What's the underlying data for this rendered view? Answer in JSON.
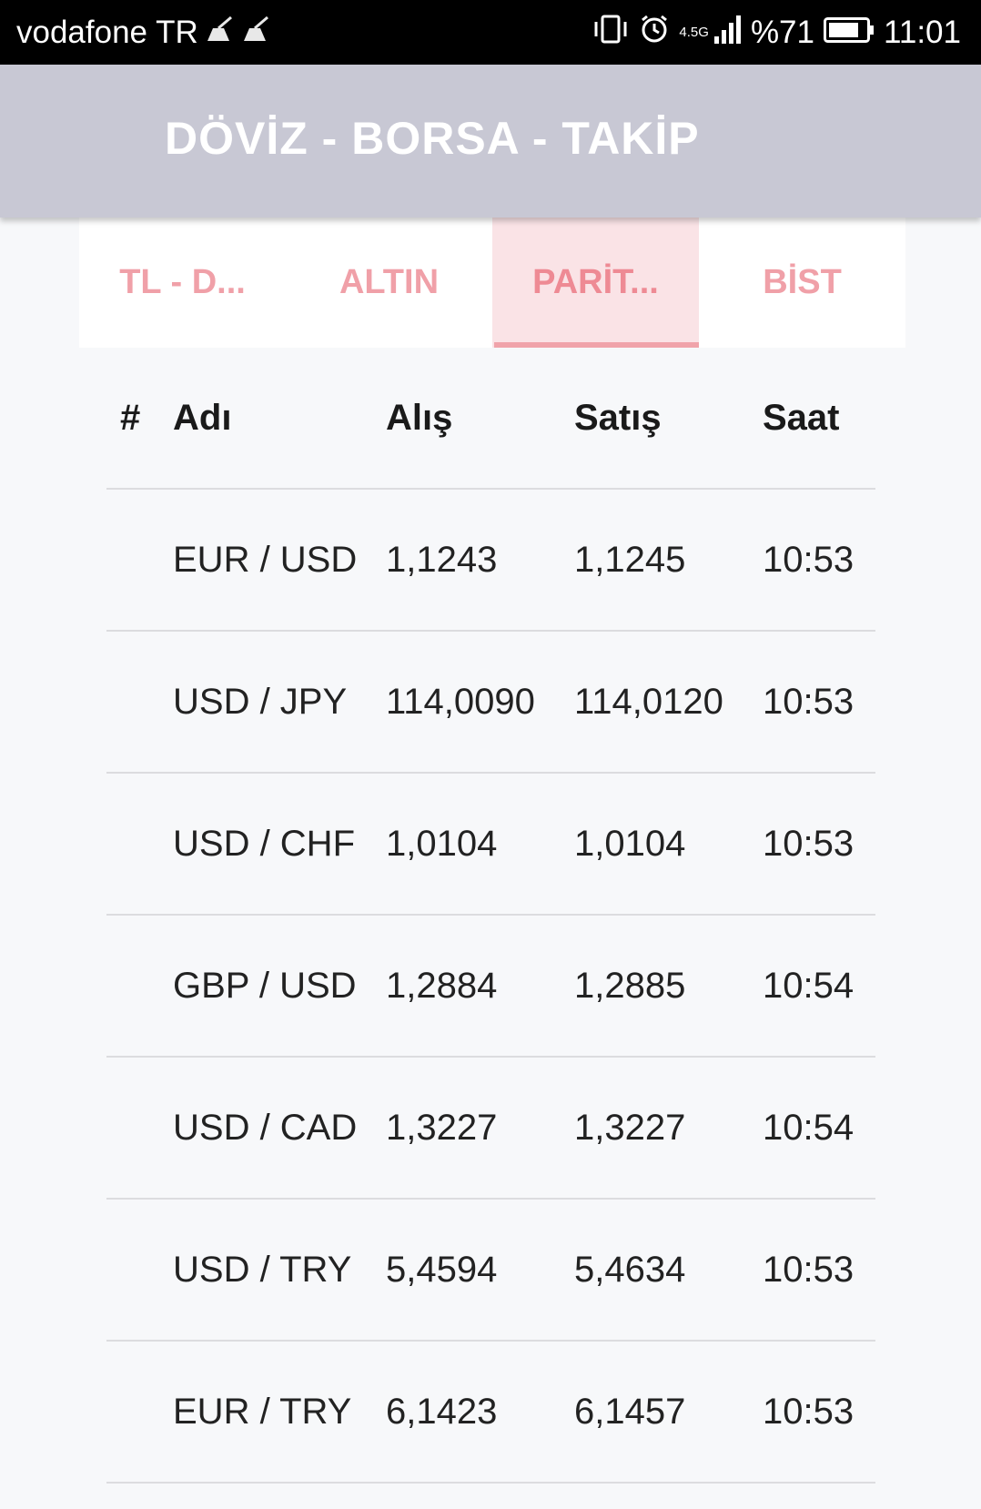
{
  "status_bar": {
    "carrier": "vodafone TR",
    "network": "4.5G",
    "battery": "%71",
    "time": "11:01"
  },
  "app_bar": {
    "title": "DÖVİZ - BORSA - TAKİP"
  },
  "tabs": [
    {
      "label": "TL - D...",
      "active": false
    },
    {
      "label": "ALTIN",
      "active": false
    },
    {
      "label": "PARİT...",
      "active": true
    },
    {
      "label": "BİST",
      "active": false
    }
  ],
  "table": {
    "headers": {
      "num": "#",
      "name": "Adı",
      "buy": "Alış",
      "sell": "Satış",
      "time": "Saat"
    },
    "rows": [
      {
        "name": "EUR / USD",
        "buy": "1,1243",
        "sell": "1,1245",
        "time": "10:53"
      },
      {
        "name": "USD / JPY",
        "buy": "114,0090",
        "sell": "114,0120",
        "time": "10:53"
      },
      {
        "name": "USD / CHF",
        "buy": "1,0104",
        "sell": "1,0104",
        "time": "10:53"
      },
      {
        "name": "GBP / USD",
        "buy": "1,2884",
        "sell": "1,2885",
        "time": "10:54"
      },
      {
        "name": "USD / CAD",
        "buy": "1,3227",
        "sell": "1,3227",
        "time": "10:54"
      },
      {
        "name": "USD / TRY",
        "buy": "5,4594",
        "sell": "5,4634",
        "time": "10:53"
      },
      {
        "name": "EUR / TRY",
        "buy": "6,1423",
        "sell": "6,1457",
        "time": "10:53"
      }
    ]
  },
  "colors": {
    "app_bar": "#c8c8d4",
    "tab_text": "#f0a0a8",
    "tab_active_bg": "#fae3e6",
    "tab_indicator": "#f0a3aa"
  }
}
